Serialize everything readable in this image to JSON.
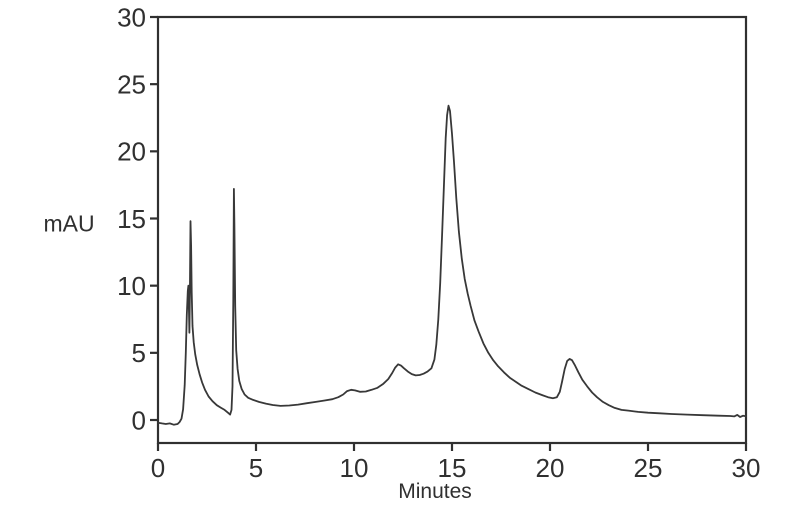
{
  "chart_data": {
    "type": "line",
    "title": "",
    "xlabel": "Minutes",
    "ylabel": "mAU",
    "x_range": [
      0,
      30
    ],
    "y_range": [
      0,
      30
    ],
    "x_ticks": [
      0,
      5,
      10,
      15,
      20,
      25,
      30
    ],
    "y_ticks": [
      0,
      5,
      10,
      15,
      20,
      25,
      30
    ],
    "grid": false,
    "legend": "none",
    "frame": "full-box",
    "colors": {
      "trace": "#383838",
      "axis": "#303030",
      "text": "#303030",
      "background": "#ffffff"
    },
    "peaks": [
      {
        "retention_min": 1.55,
        "height_mau": 10.0
      },
      {
        "retention_min": 1.66,
        "height_mau": 14.8
      },
      {
        "retention_min": 3.87,
        "height_mau": 17.2
      },
      {
        "retention_min": 9.85,
        "height_mau": 2.25
      },
      {
        "retention_min": 12.25,
        "height_mau": 4.15
      },
      {
        "retention_min": 14.82,
        "height_mau": 23.4
      },
      {
        "retention_min": 21.0,
        "height_mau": 4.55
      }
    ],
    "series": [
      {
        "name": "chromatogram-trace",
        "points": [
          [
            0.0,
            -0.2
          ],
          [
            0.2,
            -0.25
          ],
          [
            0.4,
            -0.3
          ],
          [
            0.6,
            -0.25
          ],
          [
            0.8,
            -0.35
          ],
          [
            1.0,
            -0.3
          ],
          [
            1.1,
            -0.15
          ],
          [
            1.2,
            0.1
          ],
          [
            1.28,
            0.8
          ],
          [
            1.36,
            2.6
          ],
          [
            1.42,
            5.0
          ],
          [
            1.47,
            7.8
          ],
          [
            1.52,
            9.6
          ],
          [
            1.55,
            10.0
          ],
          [
            1.58,
            8.0
          ],
          [
            1.6,
            6.5
          ],
          [
            1.63,
            9.5
          ],
          [
            1.66,
            14.8
          ],
          [
            1.69,
            13.0
          ],
          [
            1.72,
            9.5
          ],
          [
            1.76,
            7.0
          ],
          [
            1.82,
            5.8
          ],
          [
            1.9,
            4.9
          ],
          [
            2.0,
            4.1
          ],
          [
            2.12,
            3.4
          ],
          [
            2.25,
            2.8
          ],
          [
            2.4,
            2.25
          ],
          [
            2.58,
            1.75
          ],
          [
            2.78,
            1.4
          ],
          [
            3.0,
            1.1
          ],
          [
            3.2,
            0.92
          ],
          [
            3.4,
            0.75
          ],
          [
            3.56,
            0.55
          ],
          [
            3.68,
            0.4
          ],
          [
            3.75,
            0.75
          ],
          [
            3.8,
            2.5
          ],
          [
            3.84,
            9.0
          ],
          [
            3.87,
            17.2
          ],
          [
            3.9,
            14.5
          ],
          [
            3.94,
            8.5
          ],
          [
            3.99,
            5.2
          ],
          [
            4.06,
            3.8
          ],
          [
            4.15,
            2.9
          ],
          [
            4.27,
            2.3
          ],
          [
            4.42,
            1.9
          ],
          [
            4.6,
            1.65
          ],
          [
            4.85,
            1.5
          ],
          [
            5.15,
            1.35
          ],
          [
            5.5,
            1.22
          ],
          [
            5.85,
            1.12
          ],
          [
            6.25,
            1.05
          ],
          [
            6.7,
            1.08
          ],
          [
            7.15,
            1.15
          ],
          [
            7.6,
            1.25
          ],
          [
            8.05,
            1.35
          ],
          [
            8.5,
            1.45
          ],
          [
            8.9,
            1.55
          ],
          [
            9.2,
            1.7
          ],
          [
            9.45,
            1.9
          ],
          [
            9.65,
            2.15
          ],
          [
            9.85,
            2.25
          ],
          [
            10.05,
            2.2
          ],
          [
            10.3,
            2.1
          ],
          [
            10.6,
            2.12
          ],
          [
            10.9,
            2.25
          ],
          [
            11.2,
            2.4
          ],
          [
            11.5,
            2.7
          ],
          [
            11.75,
            3.05
          ],
          [
            11.95,
            3.5
          ],
          [
            12.1,
            3.9
          ],
          [
            12.25,
            4.15
          ],
          [
            12.4,
            4.05
          ],
          [
            12.55,
            3.85
          ],
          [
            12.75,
            3.6
          ],
          [
            12.95,
            3.42
          ],
          [
            13.15,
            3.32
          ],
          [
            13.35,
            3.35
          ],
          [
            13.55,
            3.45
          ],
          [
            13.75,
            3.6
          ],
          [
            13.95,
            3.85
          ],
          [
            14.1,
            4.5
          ],
          [
            14.2,
            5.6
          ],
          [
            14.3,
            7.5
          ],
          [
            14.4,
            10.2
          ],
          [
            14.5,
            14.0
          ],
          [
            14.6,
            18.0
          ],
          [
            14.68,
            21.0
          ],
          [
            14.75,
            22.7
          ],
          [
            14.82,
            23.4
          ],
          [
            14.9,
            23.0
          ],
          [
            15.0,
            21.3
          ],
          [
            15.1,
            19.2
          ],
          [
            15.22,
            16.5
          ],
          [
            15.35,
            14.0
          ],
          [
            15.5,
            12.0
          ],
          [
            15.65,
            10.5
          ],
          [
            15.8,
            9.4
          ],
          [
            15.95,
            8.5
          ],
          [
            16.15,
            7.4
          ],
          [
            16.35,
            6.6
          ],
          [
            16.6,
            5.7
          ],
          [
            16.85,
            5.0
          ],
          [
            17.1,
            4.45
          ],
          [
            17.35,
            4.0
          ],
          [
            17.65,
            3.55
          ],
          [
            17.95,
            3.15
          ],
          [
            18.25,
            2.85
          ],
          [
            18.55,
            2.55
          ],
          [
            18.9,
            2.3
          ],
          [
            19.25,
            2.05
          ],
          [
            19.6,
            1.85
          ],
          [
            19.9,
            1.7
          ],
          [
            20.15,
            1.62
          ],
          [
            20.35,
            1.7
          ],
          [
            20.5,
            2.1
          ],
          [
            20.62,
            2.9
          ],
          [
            20.75,
            3.8
          ],
          [
            20.88,
            4.4
          ],
          [
            21.0,
            4.55
          ],
          [
            21.12,
            4.45
          ],
          [
            21.28,
            4.05
          ],
          [
            21.45,
            3.55
          ],
          [
            21.65,
            3.0
          ],
          [
            21.9,
            2.5
          ],
          [
            22.15,
            2.05
          ],
          [
            22.4,
            1.7
          ],
          [
            22.7,
            1.35
          ],
          [
            23.0,
            1.1
          ],
          [
            23.3,
            0.9
          ],
          [
            23.65,
            0.75
          ],
          [
            24.0,
            0.7
          ],
          [
            24.5,
            0.6
          ],
          [
            25.0,
            0.54
          ],
          [
            25.6,
            0.5
          ],
          [
            26.2,
            0.45
          ],
          [
            27.0,
            0.4
          ],
          [
            27.8,
            0.36
          ],
          [
            28.6,
            0.32
          ],
          [
            29.2,
            0.3
          ],
          [
            29.4,
            0.27
          ],
          [
            29.55,
            0.38
          ],
          [
            29.7,
            0.22
          ],
          [
            29.85,
            0.32
          ],
          [
            30.0,
            0.28
          ]
        ]
      }
    ]
  }
}
